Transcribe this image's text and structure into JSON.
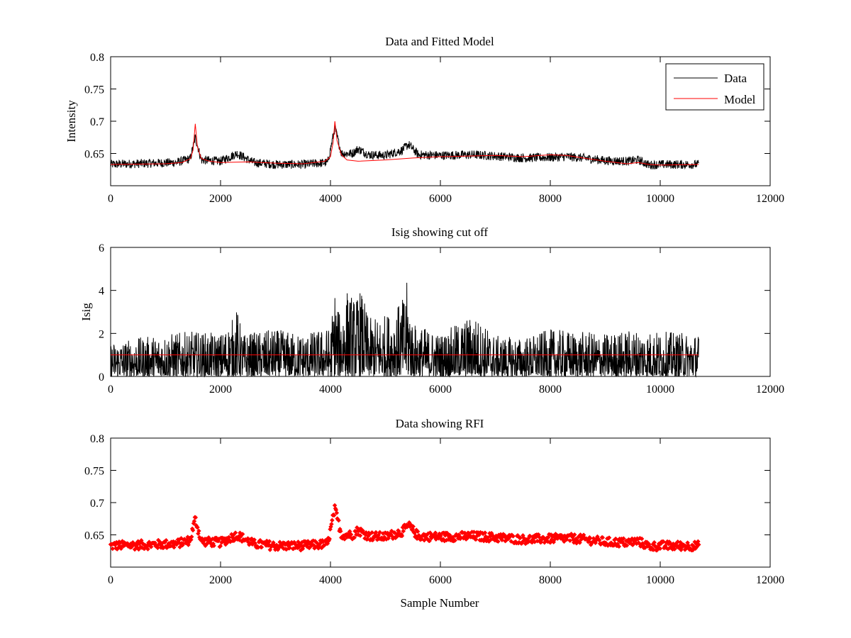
{
  "chart_data": [
    {
      "type": "line",
      "title": "Data and Fitted Model",
      "xlabel": "",
      "ylabel": "Intensity",
      "xlim": [
        0,
        12000
      ],
      "ylim": [
        0.6,
        0.8
      ],
      "xticks": [
        0,
        2000,
        4000,
        6000,
        8000,
        10000,
        12000
      ],
      "xtick_labels": [
        "0",
        "2000",
        "4000",
        "6000",
        "8000",
        "10000",
        "12000"
      ],
      "yticks": [
        0.65,
        0.7,
        0.75,
        0.8
      ],
      "ytick_labels": [
        "0.65",
        "0.7",
        "0.75",
        "0.8"
      ],
      "grid": false,
      "legend": {
        "position": "top-right",
        "entries": [
          "Data",
          "Model"
        ]
      },
      "series": [
        {
          "name": "Data",
          "color": "#000000",
          "style": "line",
          "baseline_x": [
            0,
            1200,
            1450,
            1540,
            1650,
            2000,
            2300,
            2600,
            3000,
            3500,
            3950,
            4080,
            4200,
            4400,
            4500,
            4700,
            5000,
            5300,
            5420,
            5600,
            6000,
            6600,
            7000,
            7500,
            8000,
            8300,
            8600,
            9000,
            9400,
            9600,
            9800,
            10000,
            10700
          ],
          "baseline_y": [
            0.633,
            0.636,
            0.642,
            0.675,
            0.64,
            0.638,
            0.65,
            0.636,
            0.633,
            0.633,
            0.636,
            0.69,
            0.65,
            0.65,
            0.657,
            0.648,
            0.647,
            0.655,
            0.664,
            0.648,
            0.647,
            0.648,
            0.646,
            0.643,
            0.644,
            0.645,
            0.643,
            0.639,
            0.638,
            0.64,
            0.632,
            0.633,
            0.633
          ],
          "noise_amplitude": 0.007,
          "x_range": [
            0,
            10700
          ]
        },
        {
          "name": "Model",
          "color": "#ff0000",
          "style": "line",
          "x": [
            0,
            1000,
            1300,
            1450,
            1500,
            1540,
            1580,
            1650,
            1800,
            2000,
            2500,
            3000,
            3500,
            3900,
            4000,
            4050,
            4080,
            4120,
            4200,
            4300,
            4500,
            5000,
            5500,
            6000,
            6500,
            7000,
            7500,
            8000,
            8300,
            8600,
            9000,
            9400,
            9600,
            9800,
            10000,
            10700
          ],
          "y": [
            0.633,
            0.634,
            0.636,
            0.642,
            0.655,
            0.696,
            0.66,
            0.642,
            0.638,
            0.636,
            0.637,
            0.635,
            0.634,
            0.638,
            0.645,
            0.668,
            0.7,
            0.67,
            0.648,
            0.64,
            0.638,
            0.64,
            0.643,
            0.645,
            0.646,
            0.647,
            0.645,
            0.648,
            0.647,
            0.643,
            0.638,
            0.634,
            0.636,
            0.633,
            0.632,
            0.633
          ]
        }
      ]
    },
    {
      "type": "line",
      "title": "Isig showing cut off",
      "xlabel": "",
      "ylabel": "Isig",
      "xlim": [
        0,
        12000
      ],
      "ylim": [
        0,
        6
      ],
      "xticks": [
        0,
        2000,
        4000,
        6000,
        8000,
        10000,
        12000
      ],
      "xtick_labels": [
        "0",
        "2000",
        "4000",
        "6000",
        "8000",
        "10000",
        "12000"
      ],
      "yticks": [
        0,
        2,
        4,
        6
      ],
      "ytick_labels": [
        "0",
        "2",
        "4",
        "6"
      ],
      "grid": false,
      "series": [
        {
          "name": "Isig",
          "color": "#000000",
          "style": "line",
          "envelope_x": [
            0,
            500,
            1000,
            1500,
            2000,
            2200,
            2300,
            2400,
            3000,
            3500,
            4000,
            4080,
            4150,
            4300,
            4450,
            4550,
            4700,
            5000,
            5300,
            5400,
            5500,
            6000,
            6600,
            7000,
            7500,
            8000,
            8500,
            9000,
            9500,
            10000,
            10700
          ],
          "envelope_y": [
            1.6,
            1.8,
            2.0,
            2.1,
            2.0,
            2.6,
            3.2,
            2.0,
            2.2,
            2.0,
            2.3,
            4.2,
            3.0,
            4.1,
            3.6,
            4.1,
            2.7,
            2.9,
            3.5,
            4.5,
            2.5,
            2.0,
            2.9,
            1.9,
            1.8,
            2.2,
            2.1,
            2.0,
            2.2,
            2.1,
            2.0
          ],
          "x_range": [
            0,
            10700
          ]
        },
        {
          "name": "cut off",
          "color": "#ff0000",
          "style": "line",
          "x": [
            0,
            10700
          ],
          "y": [
            1,
            1
          ]
        }
      ]
    },
    {
      "type": "scatter",
      "title": "Data showing RFI",
      "xlabel": "Sample Number",
      "ylabel": "",
      "xlim": [
        0,
        12000
      ],
      "ylim": [
        0.6,
        0.8
      ],
      "xticks": [
        0,
        2000,
        4000,
        6000,
        8000,
        10000,
        12000
      ],
      "xtick_labels": [
        "0",
        "2000",
        "4000",
        "6000",
        "8000",
        "10000",
        "12000"
      ],
      "yticks": [
        0.65,
        0.7,
        0.75,
        0.8
      ],
      "ytick_labels": [
        "0.65",
        "0.7",
        "0.75",
        "0.8"
      ],
      "grid": false,
      "series": [
        {
          "name": "RFI",
          "color": "#ff0000",
          "style": "markers",
          "marker": "diamond",
          "same_as_series": "Data",
          "x_range": [
            0,
            10700
          ]
        }
      ]
    }
  ]
}
